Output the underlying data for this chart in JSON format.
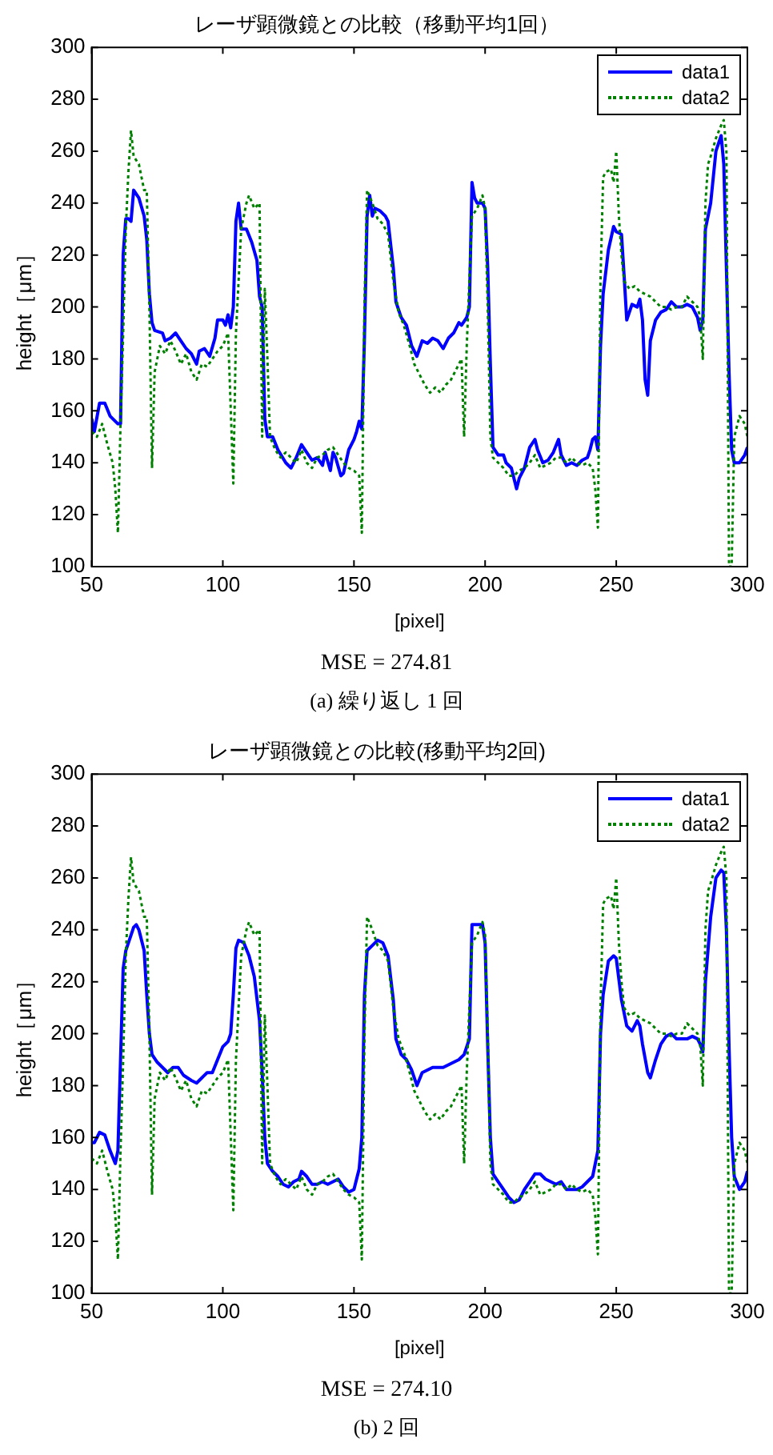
{
  "chart_data": [
    {
      "type": "line",
      "title": "レーザ顕微鏡との比較（移動平均1回）",
      "xlabel": "[pixel]",
      "ylabel": "height［μm］",
      "annotations": [
        "MSE = 274.81",
        "(a) 繰り返し 1 回"
      ],
      "xlim": [
        50,
        300
      ],
      "xticks": [
        50,
        100,
        150,
        200,
        250,
        300
      ],
      "ylim": [
        100,
        300
      ],
      "yticks": [
        100,
        120,
        140,
        160,
        180,
        200,
        220,
        240,
        260,
        280,
        300
      ],
      "grid": false,
      "legend": "top right",
      "marker": "none",
      "series": [
        {
          "name": "data1",
          "color": "#0000ff",
          "line_style": "solid",
          "x": [
            50,
            51,
            53,
            55,
            57,
            60,
            61,
            62,
            63,
            64,
            65,
            66,
            68,
            70,
            71,
            72,
            73,
            74,
            77,
            78,
            80,
            82,
            84,
            86,
            88,
            90,
            91,
            93,
            95,
            97,
            98,
            100,
            101,
            102,
            103,
            104,
            105,
            106,
            107,
            109,
            111,
            113,
            114,
            115,
            116,
            117,
            119,
            121,
            124,
            126,
            128,
            130,
            132,
            134,
            136,
            138,
            139,
            141,
            142,
            143,
            145,
            146,
            148,
            150,
            151,
            152,
            153,
            154,
            155,
            156,
            157,
            158,
            160,
            162,
            163,
            165,
            166,
            168,
            170,
            172,
            174,
            176,
            178,
            180,
            182,
            184,
            186,
            188,
            190,
            191,
            193,
            194,
            195,
            196,
            197,
            199,
            200,
            201,
            202,
            203,
            205,
            207,
            208,
            210,
            212,
            213,
            215,
            217,
            219,
            220,
            222,
            224,
            226,
            228,
            229,
            231,
            233,
            235,
            237,
            239,
            240,
            241,
            242,
            243,
            244,
            245,
            247,
            249,
            250,
            252,
            253,
            254,
            256,
            258,
            259,
            260,
            261,
            262,
            263,
            265,
            267,
            269,
            271,
            273,
            275,
            277,
            279,
            281,
            282,
            283,
            284,
            286,
            288,
            290,
            291,
            292,
            293,
            294,
            295,
            297,
            299,
            300
          ],
          "values": [
            157,
            152,
            163,
            163,
            158,
            155,
            155,
            220,
            234,
            234,
            233,
            245,
            242,
            235,
            226,
            205,
            194,
            191,
            190,
            187,
            188,
            190,
            187,
            184,
            182,
            178,
            183,
            184,
            181,
            188,
            195,
            195,
            193,
            197,
            192,
            200,
            233,
            240,
            230,
            230,
            225,
            218,
            204,
            200,
            157,
            150,
            150,
            145,
            140,
            138,
            142,
            147,
            144,
            141,
            142,
            139,
            144,
            137,
            144,
            142,
            135,
            136,
            145,
            149,
            152,
            156,
            153,
            188,
            235,
            243,
            235,
            238,
            237,
            235,
            233,
            215,
            202,
            196,
            193,
            185,
            181,
            187,
            186,
            188,
            187,
            184,
            188,
            190,
            194,
            193,
            196,
            200,
            248,
            242,
            240,
            240,
            238,
            215,
            178,
            146,
            143,
            143,
            140,
            138,
            130,
            134,
            138,
            146,
            149,
            145,
            140,
            141,
            144,
            149,
            143,
            139,
            140,
            139,
            141,
            142,
            145,
            149,
            150,
            145,
            185,
            205,
            222,
            231,
            229,
            228,
            212,
            195,
            201,
            200,
            203,
            195,
            172,
            166,
            187,
            195,
            198,
            199,
            202,
            200,
            200,
            201,
            200,
            196,
            191,
            195,
            230,
            240,
            260,
            266,
            255,
            215,
            175,
            145,
            140,
            140,
            143,
            146
          ]
        },
        {
          "name": "data2",
          "color": "#008000",
          "line_style": "dotted",
          "x": [
            50,
            52,
            54,
            56,
            58,
            59,
            60,
            61,
            62,
            63,
            64,
            65,
            66,
            68,
            70,
            71,
            72,
            73,
            74,
            76,
            78,
            80,
            82,
            84,
            86,
            88,
            90,
            92,
            94,
            96,
            98,
            100,
            102,
            104,
            105,
            107,
            109,
            110,
            112,
            114,
            115,
            116,
            117,
            118,
            120,
            122,
            124,
            126,
            128,
            130,
            132,
            134,
            136,
            138,
            140,
            142,
            144,
            146,
            148,
            150,
            152,
            153,
            154,
            155,
            157,
            159,
            161,
            163,
            165,
            167,
            169,
            171,
            173,
            175,
            177,
            179,
            181,
            183,
            185,
            187,
            189,
            191,
            192,
            193,
            195,
            197,
            199,
            200,
            201,
            202,
            203,
            205,
            207,
            209,
            211,
            213,
            215,
            217,
            219,
            221,
            223,
            225,
            227,
            229,
            231,
            233,
            235,
            237,
            239,
            241,
            242,
            243,
            244,
            245,
            246,
            248,
            249,
            250,
            251,
            252,
            253,
            255,
            257,
            259,
            261,
            263,
            265,
            267,
            269,
            271,
            273,
            275,
            277,
            279,
            281,
            282,
            283,
            284,
            285,
            286,
            288,
            290,
            291,
            292,
            293,
            294,
            295,
            297,
            299,
            300
          ],
          "values": [
            152,
            150,
            155,
            147,
            140,
            130,
            113,
            155,
            190,
            230,
            252,
            268,
            258,
            255,
            245,
            245,
            200,
            138,
            175,
            185,
            182,
            187,
            183,
            178,
            182,
            175,
            172,
            178,
            177,
            180,
            183,
            185,
            190,
            132,
            190,
            230,
            240,
            243,
            238,
            240,
            150,
            207,
            180,
            150,
            145,
            142,
            144,
            142,
            140,
            145,
            140,
            138,
            142,
            143,
            145,
            146,
            143,
            140,
            138,
            137,
            135,
            113,
            200,
            245,
            240,
            234,
            232,
            228,
            210,
            198,
            193,
            186,
            178,
            174,
            170,
            167,
            169,
            167,
            170,
            172,
            176,
            180,
            150,
            185,
            235,
            238,
            243,
            238,
            200,
            150,
            142,
            140,
            138,
            135,
            135,
            137,
            138,
            140,
            143,
            138,
            139,
            140,
            142,
            142,
            140,
            142,
            140,
            139,
            140,
            138,
            130,
            115,
            210,
            250,
            252,
            253,
            248,
            260,
            235,
            220,
            210,
            207,
            208,
            206,
            205,
            204,
            202,
            200,
            200,
            199,
            200,
            200,
            204,
            202,
            200,
            196,
            180,
            240,
            255,
            258,
            265,
            270,
            272,
            260,
            100,
            100,
            150,
            158,
            155,
            150
          ]
        }
      ]
    },
    {
      "type": "line",
      "title": "レーザ顕微鏡との比較(移動平均2回)",
      "xlabel": "[pixel]",
      "ylabel": "height［μm］",
      "annotations": [
        "MSE = 274.10",
        "(b) 2 回"
      ],
      "xlim": [
        50,
        300
      ],
      "xticks": [
        50,
        100,
        150,
        200,
        250,
        300
      ],
      "ylim": [
        100,
        300
      ],
      "yticks": [
        100,
        120,
        140,
        160,
        180,
        200,
        220,
        240,
        260,
        280,
        300
      ],
      "grid": false,
      "legend": "top right",
      "marker": "none",
      "series": [
        {
          "name": "data1",
          "color": "#0000ff",
          "line_style": "solid",
          "x": [
            50,
            51,
            53,
            55,
            57,
            59,
            60,
            61,
            62,
            63,
            65,
            66,
            67,
            68,
            70,
            71,
            72,
            73,
            75,
            77,
            79,
            81,
            83,
            85,
            88,
            90,
            92,
            94,
            96,
            98,
            100,
            102,
            103,
            104,
            105,
            106,
            108,
            110,
            112,
            114,
            115,
            116,
            117,
            119,
            121,
            123,
            125,
            127,
            129,
            130,
            132,
            134,
            136,
            138,
            140,
            142,
            144,
            146,
            148,
            150,
            152,
            153,
            154,
            155,
            157,
            159,
            161,
            163,
            165,
            166,
            168,
            170,
            172,
            174,
            176,
            178,
            180,
            182,
            184,
            186,
            188,
            190,
            192,
            194,
            195,
            197,
            199,
            200,
            201,
            202,
            203,
            205,
            207,
            209,
            211,
            213,
            215,
            217,
            219,
            221,
            223,
            225,
            227,
            229,
            231,
            233,
            235,
            237,
            239,
            241,
            242,
            243,
            244,
            245,
            247,
            249,
            250,
            252,
            254,
            256,
            258,
            259,
            260,
            262,
            263,
            265,
            267,
            269,
            271,
            273,
            275,
            277,
            279,
            281,
            282,
            283,
            284,
            286,
            288,
            290,
            291,
            292,
            293,
            294,
            295,
            297,
            299,
            300
          ],
          "values": [
            158,
            158,
            162,
            161,
            155,
            150,
            155,
            190,
            225,
            232,
            238,
            241,
            242,
            240,
            232,
            215,
            200,
            192,
            189,
            187,
            185,
            187,
            187,
            184,
            182,
            181,
            183,
            185,
            185,
            190,
            195,
            197,
            200,
            215,
            233,
            236,
            235,
            230,
            222,
            205,
            185,
            160,
            150,
            147,
            145,
            142,
            141,
            143,
            144,
            147,
            145,
            142,
            142,
            143,
            142,
            143,
            144,
            141,
            139,
            140,
            148,
            160,
            215,
            232,
            234,
            236,
            235,
            230,
            213,
            198,
            192,
            190,
            186,
            180,
            185,
            186,
            187,
            187,
            187,
            188,
            189,
            190,
            192,
            198,
            242,
            242,
            242,
            235,
            195,
            160,
            146,
            143,
            140,
            137,
            135,
            136,
            140,
            143,
            146,
            146,
            144,
            143,
            142,
            143,
            140,
            140,
            140,
            141,
            143,
            145,
            150,
            155,
            200,
            215,
            228,
            230,
            229,
            213,
            203,
            201,
            205,
            203,
            196,
            185,
            183,
            190,
            196,
            199,
            200,
            198,
            198,
            198,
            199,
            198,
            196,
            193,
            220,
            245,
            260,
            263,
            262,
            240,
            195,
            160,
            145,
            140,
            143,
            147
          ]
        },
        {
          "name": "data2",
          "color": "#008000",
          "line_style": "dotted",
          "x": [
            50,
            52,
            54,
            56,
            58,
            59,
            60,
            61,
            62,
            63,
            64,
            65,
            66,
            68,
            70,
            71,
            72,
            73,
            74,
            76,
            78,
            80,
            82,
            84,
            86,
            88,
            90,
            92,
            94,
            96,
            98,
            100,
            102,
            104,
            105,
            107,
            109,
            110,
            112,
            114,
            115,
            116,
            117,
            118,
            120,
            122,
            124,
            126,
            128,
            130,
            132,
            134,
            136,
            138,
            140,
            142,
            144,
            146,
            148,
            150,
            152,
            153,
            154,
            155,
            157,
            159,
            161,
            163,
            165,
            167,
            169,
            171,
            173,
            175,
            177,
            179,
            181,
            183,
            185,
            187,
            189,
            191,
            192,
            193,
            195,
            197,
            199,
            200,
            201,
            202,
            203,
            205,
            207,
            209,
            211,
            213,
            215,
            217,
            219,
            221,
            223,
            225,
            227,
            229,
            231,
            233,
            235,
            237,
            239,
            241,
            242,
            243,
            244,
            245,
            246,
            248,
            249,
            250,
            251,
            252,
            253,
            255,
            257,
            259,
            261,
            263,
            265,
            267,
            269,
            271,
            273,
            275,
            277,
            279,
            281,
            282,
            283,
            284,
            285,
            286,
            288,
            290,
            291,
            292,
            293,
            294,
            295,
            297,
            299,
            300
          ],
          "values": [
            152,
            150,
            155,
            147,
            140,
            130,
            113,
            155,
            190,
            230,
            252,
            268,
            258,
            255,
            245,
            245,
            200,
            138,
            175,
            185,
            182,
            187,
            183,
            178,
            182,
            175,
            172,
            178,
            177,
            180,
            183,
            185,
            190,
            132,
            190,
            230,
            240,
            243,
            238,
            240,
            150,
            207,
            180,
            150,
            145,
            142,
            144,
            142,
            140,
            145,
            140,
            138,
            142,
            143,
            145,
            146,
            143,
            140,
            138,
            137,
            135,
            113,
            200,
            245,
            240,
            234,
            232,
            228,
            210,
            198,
            193,
            186,
            178,
            174,
            170,
            167,
            169,
            167,
            170,
            172,
            176,
            180,
            150,
            185,
            235,
            238,
            243,
            238,
            200,
            150,
            142,
            140,
            138,
            135,
            135,
            137,
            138,
            140,
            143,
            138,
            139,
            140,
            142,
            142,
            140,
            142,
            140,
            139,
            140,
            138,
            130,
            115,
            210,
            250,
            252,
            253,
            248,
            260,
            235,
            220,
            210,
            207,
            208,
            206,
            205,
            204,
            202,
            200,
            200,
            199,
            200,
            200,
            204,
            202,
            200,
            196,
            180,
            240,
            255,
            258,
            265,
            270,
            272,
            260,
            100,
            100,
            150,
            158,
            155,
            150
          ]
        }
      ]
    }
  ]
}
